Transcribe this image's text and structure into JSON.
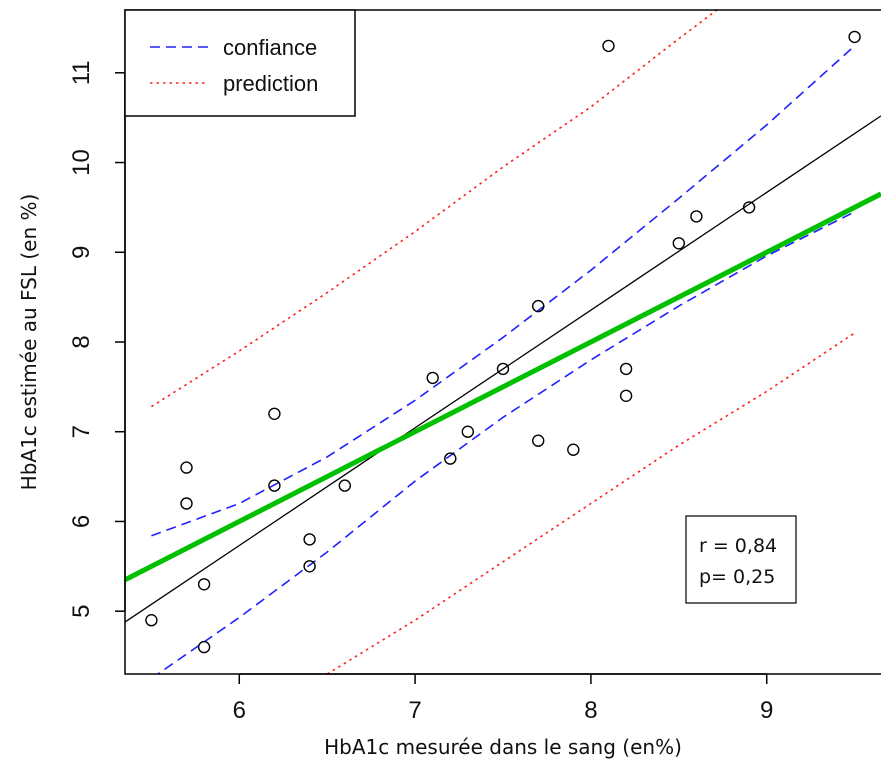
{
  "chart_data": {
    "type": "scatter",
    "xlabel": "HbA1c mesurée dans le sang (en%)",
    "ylabel": "HbA1c estimée au FSL (en %)",
    "xlim": [
      5.35,
      9.65
    ],
    "ylim": [
      4.3,
      11.7
    ],
    "x_ticks": [
      6,
      7,
      8,
      9
    ],
    "y_ticks": [
      5,
      6,
      7,
      8,
      9,
      10,
      11
    ],
    "grid": false,
    "legend_position": "top-left",
    "points": [
      {
        "x": 5.5,
        "y": 4.9
      },
      {
        "x": 5.7,
        "y": 6.6
      },
      {
        "x": 5.7,
        "y": 6.2
      },
      {
        "x": 5.8,
        "y": 5.3
      },
      {
        "x": 5.8,
        "y": 4.6
      },
      {
        "x": 6.2,
        "y": 7.2
      },
      {
        "x": 6.2,
        "y": 6.4
      },
      {
        "x": 6.4,
        "y": 5.8
      },
      {
        "x": 6.4,
        "y": 5.5
      },
      {
        "x": 6.6,
        "y": 6.4
      },
      {
        "x": 7.1,
        "y": 7.6
      },
      {
        "x": 7.2,
        "y": 6.7
      },
      {
        "x": 7.3,
        "y": 7.0
      },
      {
        "x": 7.5,
        "y": 7.7
      },
      {
        "x": 7.7,
        "y": 8.4
      },
      {
        "x": 7.7,
        "y": 6.9
      },
      {
        "x": 7.9,
        "y": 6.8
      },
      {
        "x": 8.1,
        "y": 11.3
      },
      {
        "x": 8.2,
        "y": 7.7
      },
      {
        "x": 8.2,
        "y": 7.4
      },
      {
        "x": 8.5,
        "y": 9.1
      },
      {
        "x": 8.6,
        "y": 9.4
      },
      {
        "x": 8.9,
        "y": 9.5
      },
      {
        "x": 9.5,
        "y": 11.4
      }
    ],
    "lines": [
      {
        "name": "",
        "role": "regression",
        "color": "#000000",
        "style": "solid",
        "points": [
          [
            5.35,
            4.88
          ],
          [
            9.65,
            10.52
          ]
        ]
      },
      {
        "name": "",
        "role": "identity",
        "color": "#00c000",
        "style": "solid-thick",
        "points": [
          [
            5.35,
            5.35
          ],
          [
            9.65,
            9.65
          ]
        ]
      },
      {
        "name": "confiance",
        "role": "confidence-upper",
        "color": "#2020ff",
        "style": "dashed",
        "points": [
          [
            5.5,
            5.84
          ],
          [
            6.0,
            6.2
          ],
          [
            6.5,
            6.72
          ],
          [
            7.0,
            7.35
          ],
          [
            7.5,
            8.05
          ],
          [
            8.0,
            8.8
          ],
          [
            8.5,
            9.6
          ],
          [
            9.0,
            10.42
          ],
          [
            9.5,
            11.3
          ]
        ]
      },
      {
        "name": "confiance",
        "role": "confidence-lower",
        "color": "#2020ff",
        "style": "dashed",
        "points": [
          [
            5.5,
            4.25
          ],
          [
            6.0,
            4.93
          ],
          [
            6.5,
            5.66
          ],
          [
            7.0,
            6.45
          ],
          [
            7.5,
            7.16
          ],
          [
            8.0,
            7.8
          ],
          [
            8.5,
            8.4
          ],
          [
            9.0,
            8.96
          ],
          [
            9.5,
            9.45
          ]
        ]
      },
      {
        "name": "prediction",
        "role": "prediction-upper",
        "color": "#ff2020",
        "style": "dotted",
        "points": [
          [
            5.5,
            7.28
          ],
          [
            6.0,
            7.9
          ],
          [
            6.5,
            8.55
          ],
          [
            7.0,
            9.23
          ],
          [
            7.5,
            9.95
          ],
          [
            8.0,
            10.62
          ],
          [
            8.5,
            11.38
          ],
          [
            8.92,
            12.0
          ]
        ]
      },
      {
        "name": "prediction",
        "role": "prediction-lower",
        "color": "#ff2020",
        "style": "dotted",
        "points": [
          [
            6.5,
            4.3
          ],
          [
            7.0,
            4.9
          ],
          [
            7.5,
            5.55
          ],
          [
            8.0,
            6.2
          ],
          [
            8.5,
            6.85
          ],
          [
            9.0,
            7.45
          ],
          [
            9.5,
            8.1
          ]
        ]
      }
    ],
    "legend": [
      {
        "label": "confiance",
        "color": "#2020ff",
        "style": "dashed"
      },
      {
        "label": "prediction",
        "color": "#ff2020",
        "style": "dotted"
      }
    ],
    "annotation": {
      "line1": "r = 0,84",
      "line2": "p= 0,25"
    }
  }
}
